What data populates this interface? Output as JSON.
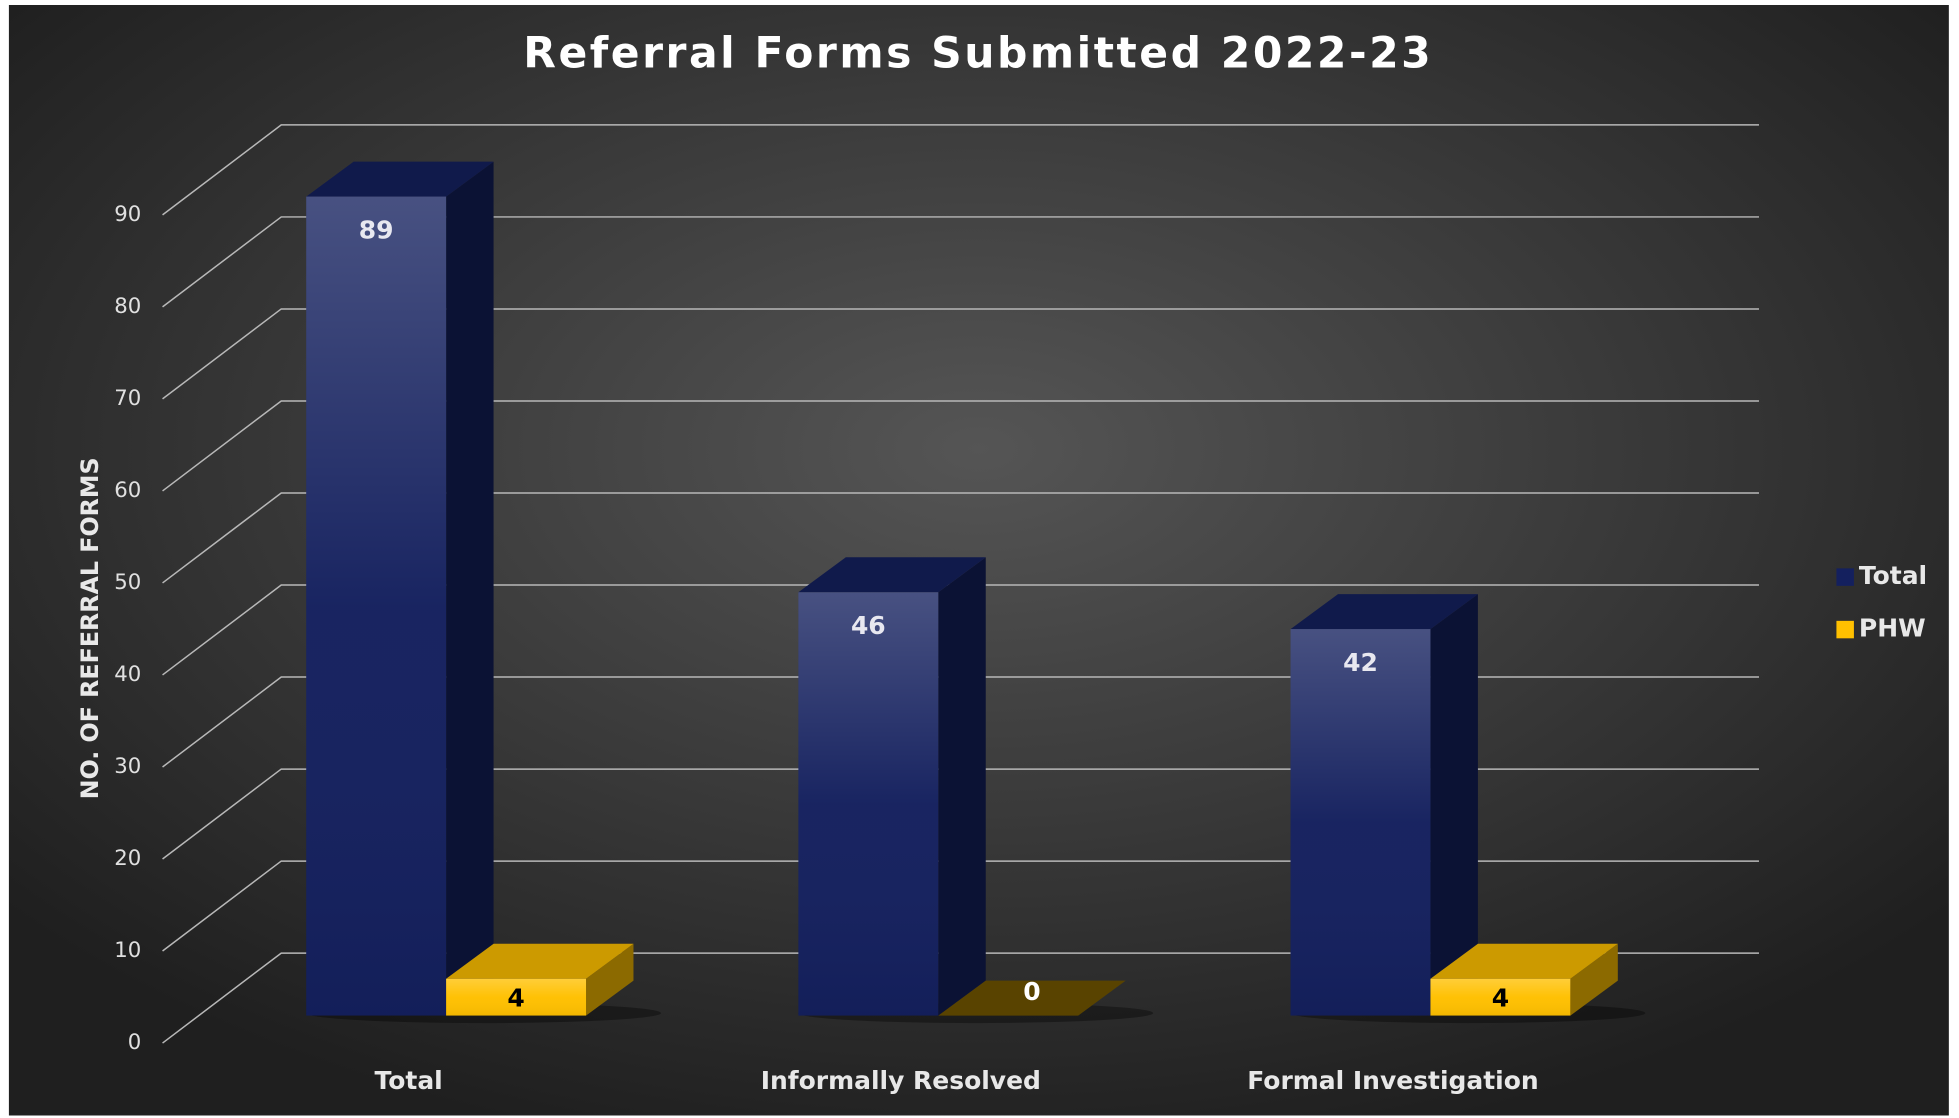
{
  "chart_data": {
    "type": "bar3d",
    "title": "Referral Forms Submitted 2022-23",
    "y_axis_label": "NO. OF REFERRAL FORMS",
    "categories": [
      "Total",
      "Informally Resolved",
      "Formal Investigation"
    ],
    "series": [
      {
        "name": "Total",
        "color": "#14205e",
        "values": [
          89,
          46,
          42
        ]
      },
      {
        "name": "PHW",
        "color": "#ffc000",
        "values": [
          4,
          0,
          4
        ]
      }
    ],
    "ylim": [
      0,
      90
    ],
    "yticks": [
      0,
      10,
      20,
      30,
      40,
      50,
      60,
      70,
      80,
      90
    ],
    "grid": true,
    "legend": "right"
  }
}
